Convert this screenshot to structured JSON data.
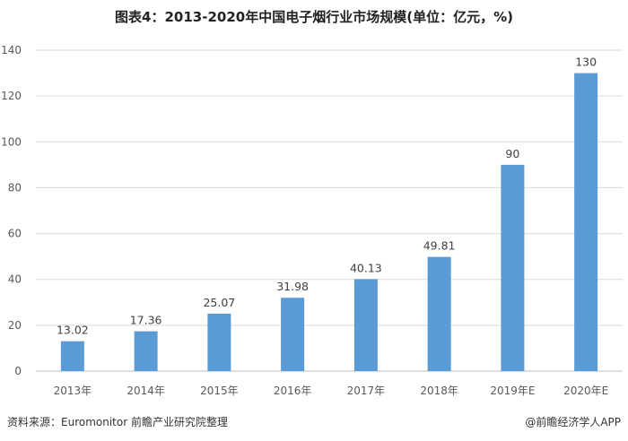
{
  "title": "图表4：2013-2020年中国电子烟行业市场规模(单位：亿元，%)",
  "footer": {
    "source": "资料来源：Euromonitor 前瞻产业研究院整理",
    "credit": "@前瞻经济学人APP"
  },
  "colors": {
    "bar": "#5b9bd5",
    "grid": "#d9d9d9",
    "axis": "#bfbfbf"
  },
  "chart_data": {
    "type": "bar",
    "categories": [
      "2013年",
      "2014年",
      "2015年",
      "2016年",
      "2017年",
      "2018年",
      "2019年E",
      "2020年E"
    ],
    "values": [
      13.02,
      17.36,
      25.07,
      31.98,
      40.13,
      49.81,
      90,
      130
    ],
    "data_labels": [
      "13.02",
      "17.36",
      "25.07",
      "31.98",
      "40.13",
      "49.81",
      "90",
      "130"
    ],
    "ylim": [
      0,
      140
    ],
    "yticks": [
      0,
      20,
      40,
      60,
      80,
      100,
      120,
      140
    ],
    "grid": true,
    "legend": "none"
  }
}
